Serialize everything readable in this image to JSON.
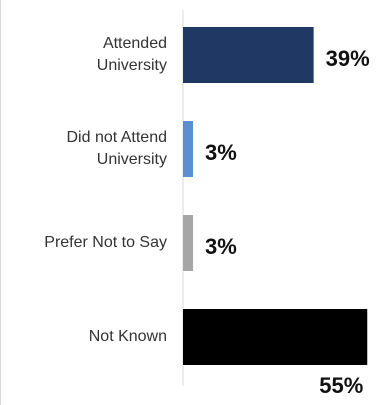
{
  "chart_data": {
    "type": "bar",
    "orientation": "horizontal",
    "categories": [
      "Attended\nUniversity",
      "Did not Attend\nUniversity",
      "Prefer Not to Say",
      "Not Known"
    ],
    "values": [
      39,
      3,
      3,
      55
    ],
    "value_labels": [
      "39%",
      "3%",
      "3%",
      "55%"
    ],
    "colors": [
      "#203864",
      "#5b8fd1",
      "#a6a6a6",
      "#000000"
    ]
  }
}
